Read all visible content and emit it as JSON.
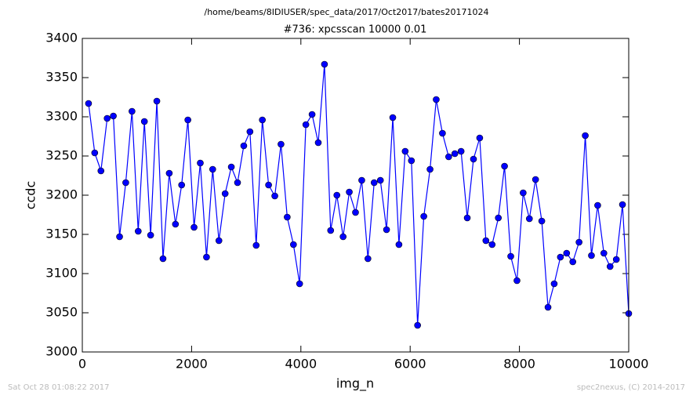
{
  "chart_data": {
    "type": "line",
    "suptitle": "/home/beams/8IDIUSER/spec_data/2017/Oct2017/bates20171024",
    "title": "#736: xpcsscan 10000 0.01",
    "xlabel": "img_n",
    "ylabel": "ccdc",
    "footer_left": "Sat Oct 28 01:08:22 2017",
    "footer_right": "spec2nexus, (C) 2014-2017",
    "x": [
      114,
      227,
      341,
      455,
      568,
      682,
      795,
      909,
      1023,
      1136,
      1250,
      1364,
      1477,
      1591,
      1705,
      1818,
      1932,
      2045,
      2159,
      2273,
      2386,
      2500,
      2614,
      2727,
      2841,
      2955,
      3068,
      3182,
      3295,
      3409,
      3523,
      3636,
      3750,
      3864,
      3977,
      4091,
      4205,
      4318,
      4432,
      4545,
      4659,
      4773,
      4886,
      5000,
      5114,
      5227,
      5341,
      5455,
      5568,
      5682,
      5795,
      5909,
      6023,
      6136,
      6250,
      6364,
      6477,
      6591,
      6705,
      6818,
      6932,
      7045,
      7159,
      7273,
      7386,
      7500,
      7614,
      7727,
      7841,
      7955,
      8068,
      8182,
      8295,
      8409,
      8523,
      8636,
      8750,
      8864,
      8977,
      9091,
      9205,
      9318,
      9432,
      9545,
      9659,
      9773,
      9886,
      10000
    ],
    "series": [
      {
        "name": "ccdc",
        "color": "#0000ff",
        "values": [
          3317,
          3254,
          3231,
          3298,
          3301,
          3147,
          3216,
          3307,
          3154,
          3294,
          3149,
          3320,
          3119,
          3228,
          3163,
          3213,
          3296,
          3159,
          3241,
          3121,
          3233,
          3142,
          3202,
          3236,
          3216,
          3263,
          3281,
          3136,
          3296,
          3213,
          3199,
          3265,
          3172,
          3137,
          3087,
          3290,
          3303,
          3267,
          3367,
          3155,
          3200,
          3147,
          3204,
          3178,
          3219,
          3119,
          3216,
          3219,
          3156,
          3299,
          3137,
          3256,
          3244,
          3034,
          3173,
          3233,
          3322,
          3279,
          3249,
          3253,
          3256,
          3171,
          3246,
          3273,
          3142,
          3137,
          3171,
          3237,
          3122,
          3091,
          3203,
          3170,
          3220,
          3167,
          3057,
          3087,
          3121,
          3126,
          3115,
          3140,
          3276,
          3123,
          3187,
          3126,
          3109,
          3118,
          3188,
          3049
        ]
      }
    ],
    "xlim": [
      0,
      10000
    ],
    "xticks": [
      0,
      2000,
      4000,
      6000,
      8000,
      10000
    ],
    "ylim": [
      3000,
      3400
    ],
    "yticks": [
      3000,
      3050,
      3100,
      3150,
      3200,
      3250,
      3300,
      3350,
      3400
    ],
    "grid": false
  }
}
